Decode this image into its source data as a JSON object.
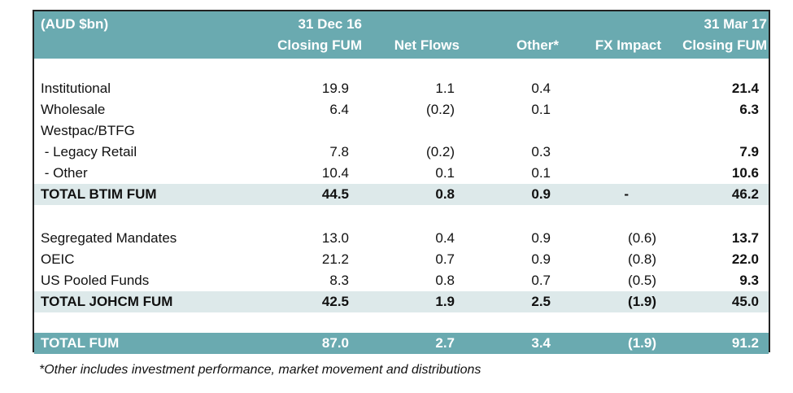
{
  "header": {
    "unit": "(AUD $bn)",
    "col1_line1": "31 Dec 16",
    "col1_line2": "Closing FUM",
    "col2": "Net Flows",
    "col3": "Other*",
    "col4": "FX Impact",
    "col5_line1": "31 Mar 17",
    "col5_line2": "Closing FUM"
  },
  "rows": [
    {
      "label": "Institutional",
      "c1": "19.9",
      "c2": "1.1",
      "c3": "0.4",
      "c4": "",
      "c5": "21.4"
    },
    {
      "label": "Wholesale",
      "c1": "6.4",
      "c2": "(0.2)",
      "c3": "0.1",
      "c4": "",
      "c5": "6.3"
    },
    {
      "label": "Westpac/BTFG",
      "c1": "",
      "c2": "",
      "c3": "",
      "c4": "",
      "c5": ""
    },
    {
      "label": " - Legacy Retail",
      "c1": "7.8",
      "c2": "(0.2)",
      "c3": "0.3",
      "c4": "",
      "c5": "7.9"
    },
    {
      "label": " - Other",
      "c1": "10.4",
      "c2": "0.1",
      "c3": "0.1",
      "c4": "",
      "c5": "10.6"
    },
    {
      "label": "TOTAL BTIM FUM",
      "c1": "44.5",
      "c2": "0.8",
      "c3": "0.9",
      "c4": "-",
      "c5": "46.2"
    },
    {
      "label": "Segregated Mandates",
      "c1": "13.0",
      "c2": "0.4",
      "c3": "0.9",
      "c4": "(0.6)",
      "c5": "13.7"
    },
    {
      "label": "OEIC",
      "c1": "21.2",
      "c2": "0.7",
      "c3": "0.9",
      "c4": "(0.8)",
      "c5": "22.0"
    },
    {
      "label": "US Pooled Funds",
      "c1": "8.3",
      "c2": "0.8",
      "c3": "0.7",
      "c4": "(0.5)",
      "c5": "9.3"
    },
    {
      "label": "TOTAL JOHCM FUM",
      "c1": "42.5",
      "c2": "1.9",
      "c3": "2.5",
      "c4": "(1.9)",
      "c5": "45.0"
    },
    {
      "label": "TOTAL FUM",
      "c1": "87.0",
      "c2": "2.7",
      "c3": "3.4",
      "c4": "(1.9)",
      "c5": "91.2"
    }
  ],
  "footnote": "*Other includes investment performance, market movement and distributions",
  "colors": {
    "header_bg": "#6aaab0",
    "subtotal_bg": "#dde9ea"
  }
}
